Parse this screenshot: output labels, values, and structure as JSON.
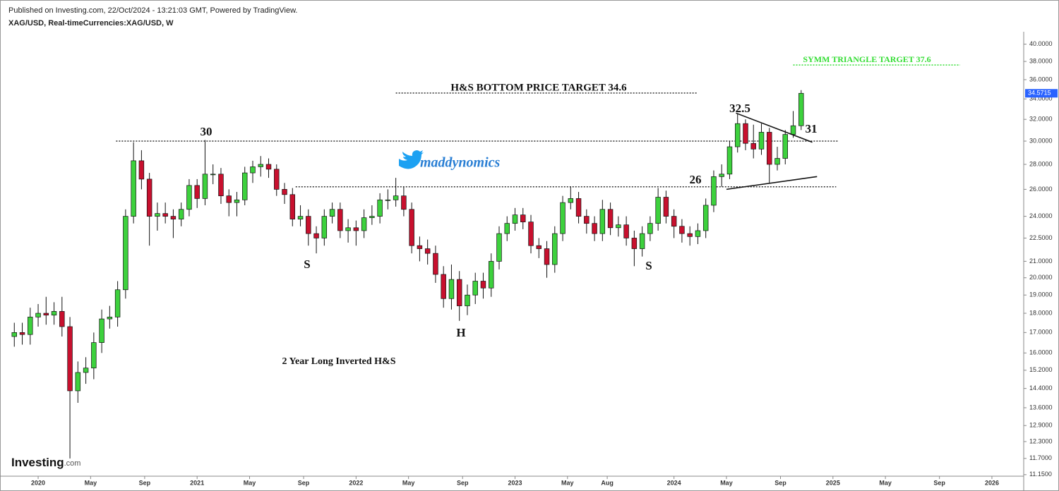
{
  "header": {
    "published": "Published on Investing.com, 22/Oct/2024 - 13:21:03 GMT, Powered by TradingView.",
    "symbol": "XAG/USD, Real-timeCurrencies:XAG/USD, W"
  },
  "logo": {
    "name": "Investing",
    "suffix": ".com"
  },
  "annotations": [
    "30",
    "S",
    "H",
    "S",
    "26",
    "32.5",
    "31",
    "H&S BOTTOM PRICE TARGET 34.6",
    "SYMM TRIANGLE TARGET 37.6",
    "maddynomics",
    "2 Year Long Inverted H&S"
  ],
  "chart_data": {
    "type": "candlestick",
    "log_scale": true,
    "up_color": "#3dd13d",
    "down_color": "#c8102e",
    "xlim": [
      2019.76,
      2026.2
    ],
    "ylim": [
      11.1,
      41.5
    ],
    "xticks": [
      2020,
      {
        "value": 2020.33,
        "label": "May"
      },
      {
        "value": 2020.67,
        "label": "Sep"
      },
      2021,
      {
        "value": 2021.33,
        "label": "May"
      },
      {
        "value": 2021.67,
        "label": "Sep"
      },
      2022,
      {
        "value": 2022.33,
        "label": "May"
      },
      {
        "value": 2022.67,
        "label": "Sep"
      },
      2023,
      {
        "value": 2023.33,
        "label": "May"
      },
      {
        "value": 2023.58,
        "label": "Aug"
      },
      2024,
      {
        "value": 2024.33,
        "label": "May"
      },
      {
        "value": 2024.67,
        "label": "Sep"
      },
      2025,
      {
        "value": 2025.33,
        "label": "May"
      },
      {
        "value": 2025.67,
        "label": "Sep"
      },
      2026
    ],
    "yticks": [
      {
        "value": 40,
        "label": "40.0000"
      },
      {
        "value": 38,
        "label": "38.0000"
      },
      {
        "value": 36,
        "label": "36.0000"
      },
      {
        "value": 34,
        "label": "34.0000"
      },
      {
        "value": 32,
        "label": "32.0000"
      },
      {
        "value": 30,
        "label": "30.0000"
      },
      {
        "value": 28,
        "label": "28.0000"
      },
      {
        "value": 26,
        "label": "26.0000"
      },
      {
        "value": 24,
        "label": "24.0000"
      },
      {
        "value": 22.5,
        "label": "22.5000"
      },
      {
        "value": 21,
        "label": "21.0000"
      },
      {
        "value": 20,
        "label": "20.0000"
      },
      {
        "value": 19,
        "label": "19.0000"
      },
      {
        "value": 18,
        "label": "18.0000"
      },
      {
        "value": 17,
        "label": "17.0000"
      },
      {
        "value": 16,
        "label": "16.0000"
      },
      {
        "value": 15.2,
        "label": "15.2000"
      },
      {
        "value": 14.4,
        "label": "14.4000"
      },
      {
        "value": 13.6,
        "label": "13.6000"
      },
      {
        "value": 12.9,
        "label": "12.9000"
      },
      {
        "value": 12.3,
        "label": "12.3000"
      },
      {
        "value": 11.7,
        "label": "11.7000"
      },
      {
        "value": 11.15,
        "label": "11.1500"
      }
    ],
    "x": [
      2019.85,
      2019.9,
      2019.95,
      2020.0,
      2020.05,
      2020.1,
      2020.15,
      2020.2,
      2020.25,
      2020.3,
      2020.35,
      2020.4,
      2020.45,
      2020.5,
      2020.55,
      2020.6,
      2020.65,
      2020.7,
      2020.75,
      2020.8,
      2020.85,
      2020.9,
      2020.95,
      2021.0,
      2021.05,
      2021.1,
      2021.15,
      2021.2,
      2021.25,
      2021.3,
      2021.35,
      2021.4,
      2021.45,
      2021.5,
      2021.55,
      2021.6,
      2021.65,
      2021.7,
      2021.75,
      2021.8,
      2021.85,
      2021.9,
      2021.95,
      2022.0,
      2022.05,
      2022.1,
      2022.15,
      2022.2,
      2022.25,
      2022.3,
      2022.35,
      2022.4,
      2022.45,
      2022.5,
      2022.55,
      2022.6,
      2022.65,
      2022.7,
      2022.75,
      2022.8,
      2022.85,
      2022.9,
      2022.95,
      2023.0,
      2023.05,
      2023.1,
      2023.15,
      2023.2,
      2023.25,
      2023.3,
      2023.35,
      2023.4,
      2023.45,
      2023.5,
      2023.55,
      2023.6,
      2023.65,
      2023.7,
      2023.75,
      2023.8,
      2023.85,
      2023.9,
      2023.95,
      2024.0,
      2024.05,
      2024.1,
      2024.15,
      2024.2,
      2024.25,
      2024.3,
      2024.35,
      2024.4,
      2024.45,
      2024.5,
      2024.55,
      2024.6,
      2024.65,
      2024.7,
      2024.75,
      2024.8
    ],
    "open": [
      16.8,
      17.0,
      16.9,
      17.8,
      18.0,
      17.9,
      18.1,
      17.3,
      14.3,
      15.1,
      15.3,
      16.5,
      17.7,
      17.8,
      19.3,
      24.0,
      28.3,
      26.8,
      24.0,
      24.2,
      24.0,
      23.8,
      24.5,
      26.3,
      25.3,
      27.2,
      27.2,
      25.5,
      25.0,
      25.2,
      27.3,
      27.8,
      28.0,
      27.6,
      26.0,
      25.6,
      23.8,
      24.0,
      22.8,
      22.5,
      24.0,
      24.5,
      23.0,
      23.2,
      23.0,
      23.9,
      24.0,
      25.2,
      25.2,
      25.5,
      24.5,
      22.0,
      21.8,
      21.5,
      20.2,
      18.8,
      19.9,
      18.4,
      19.0,
      19.8,
      19.4,
      21.0,
      22.8,
      23.5,
      24.1,
      23.6,
      22.0,
      21.8,
      20.8,
      22.8,
      25.0,
      25.3,
      24.0,
      23.5,
      22.8,
      24.5,
      23.2,
      23.4,
      22.5,
      21.8,
      22.8,
      23.5,
      25.4,
      24.0,
      23.3,
      22.8,
      22.6,
      23.0,
      24.8,
      27.0,
      27.2,
      29.5,
      31.6,
      29.8,
      29.3,
      30.8,
      28.0,
      28.5,
      30.6,
      31.4
    ],
    "high": [
      17.5,
      17.5,
      18.3,
      18.5,
      18.9,
      18.6,
      18.9,
      17.8,
      15.6,
      15.8,
      17.0,
      18.2,
      18.4,
      19.8,
      24.5,
      29.9,
      29.2,
      27.3,
      25.0,
      25.0,
      24.5,
      25.0,
      26.8,
      26.8,
      30.1,
      28.0,
      27.7,
      26.0,
      25.8,
      27.8,
      28.3,
      28.7,
      28.5,
      28.0,
      26.5,
      26.1,
      24.8,
      24.5,
      23.3,
      24.5,
      25.0,
      25.0,
      23.8,
      23.7,
      24.5,
      24.8,
      25.7,
      26.0,
      26.9,
      26.2,
      25.0,
      22.6,
      22.4,
      22.0,
      20.7,
      20.8,
      20.4,
      19.6,
      20.3,
      20.3,
      21.5,
      23.3,
      24.0,
      24.6,
      24.6,
      24.1,
      22.5,
      22.3,
      23.3,
      25.5,
      26.2,
      25.8,
      24.5,
      24.0,
      25.2,
      25.0,
      24.0,
      24.0,
      23.0,
      23.3,
      24.0,
      26.1,
      25.9,
      24.5,
      23.8,
      23.3,
      23.5,
      25.3,
      27.5,
      28.0,
      30.0,
      32.5,
      32.0,
      31.5,
      31.6,
      31.2,
      29.5,
      31.0,
      32.8,
      34.9
    ],
    "low": [
      16.3,
      16.4,
      16.4,
      17.3,
      17.4,
      17.4,
      16.8,
      11.7,
      13.8,
      14.6,
      14.8,
      16.0,
      17.2,
      17.3,
      18.8,
      23.5,
      26.0,
      22.0,
      23.0,
      23.5,
      22.5,
      23.3,
      24.0,
      24.6,
      24.8,
      26.4,
      24.9,
      24.0,
      24.0,
      24.8,
      26.5,
      27.0,
      26.9,
      25.5,
      24.9,
      23.3,
      23.3,
      22.0,
      21.5,
      22.0,
      23.5,
      22.5,
      22.2,
      22.0,
      22.5,
      23.4,
      23.5,
      24.5,
      24.7,
      24.0,
      21.5,
      21.0,
      20.8,
      19.7,
      18.3,
      18.2,
      17.6,
      17.9,
      18.5,
      18.8,
      18.9,
      20.5,
      22.3,
      23.0,
      23.1,
      21.5,
      21.2,
      20.0,
      20.3,
      22.3,
      24.5,
      23.5,
      22.8,
      22.3,
      22.3,
      22.7,
      22.6,
      22.0,
      20.7,
      21.3,
      22.3,
      23.0,
      23.5,
      22.5,
      22.2,
      22.0,
      22.1,
      22.5,
      24.3,
      26.2,
      26.8,
      29.0,
      29.2,
      28.5,
      28.8,
      26.5,
      27.5,
      28.0,
      30.3,
      31.0
    ],
    "close": [
      17.0,
      16.9,
      17.8,
      18.0,
      17.9,
      18.1,
      17.3,
      14.3,
      15.1,
      15.3,
      16.5,
      17.7,
      17.8,
      19.3,
      24.0,
      28.3,
      26.8,
      24.0,
      24.2,
      24.0,
      23.8,
      24.5,
      26.3,
      25.3,
      27.2,
      27.2,
      25.5,
      25.0,
      25.2,
      27.3,
      27.8,
      28.0,
      27.6,
      26.0,
      25.6,
      23.8,
      24.0,
      22.8,
      22.5,
      24.0,
      24.5,
      23.0,
      23.2,
      23.0,
      23.9,
      24.0,
      25.2,
      25.2,
      25.5,
      24.5,
      22.0,
      21.8,
      21.5,
      20.2,
      18.8,
      19.9,
      18.4,
      19.0,
      19.8,
      19.4,
      21.0,
      22.8,
      23.5,
      24.1,
      23.6,
      22.0,
      21.8,
      20.8,
      22.8,
      25.0,
      25.3,
      24.0,
      23.5,
      22.8,
      24.5,
      23.2,
      23.4,
      22.5,
      21.8,
      22.8,
      23.5,
      25.4,
      24.0,
      23.3,
      22.8,
      22.6,
      23.0,
      24.8,
      27.0,
      27.2,
      29.5,
      31.6,
      29.8,
      29.3,
      30.8,
      28.0,
      28.5,
      30.6,
      31.4,
      34.5715
    ],
    "price_label_color": "#2962ff",
    "reference_lines": [
      {
        "y": 30,
        "x": [
          2020.49,
          2025.03
        ],
        "color": "#333333"
      },
      {
        "y": 26.2,
        "x": [
          2021.62,
          2025.02
        ],
        "color": "#333333"
      },
      {
        "y": 34.6,
        "x": [
          2022.25,
          2024.15
        ],
        "color": "#333333"
      },
      {
        "y": 37.6,
        "x": [
          2024.75,
          2025.8
        ],
        "color": "#33dd33"
      }
    ],
    "trendlines": [
      {
        "x": [
          2024.39,
          2024.87
        ],
        "y": [
          32.6,
          29.9
        ]
      },
      {
        "x": [
          2024.33,
          2024.9
        ],
        "y": [
          26.0,
          27.0
        ]
      }
    ]
  }
}
